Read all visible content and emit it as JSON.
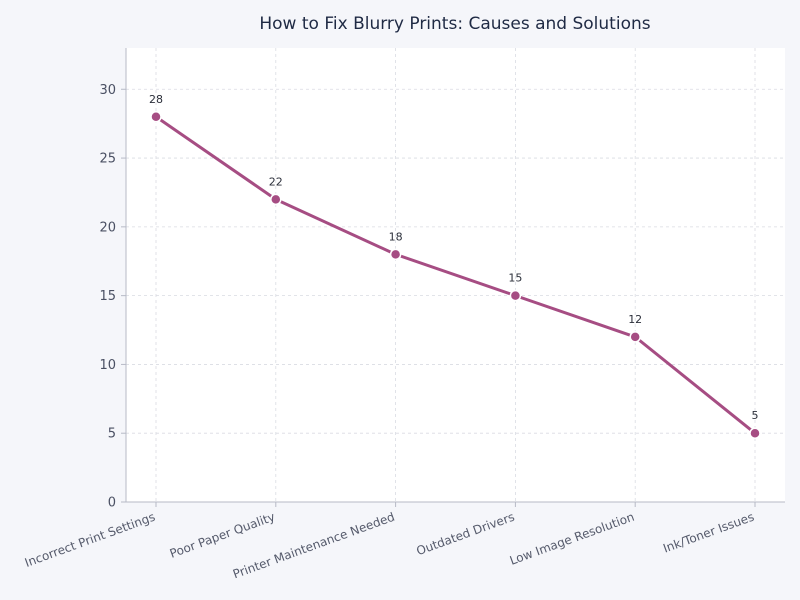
{
  "chart_data": {
    "type": "line",
    "title": "How to Fix Blurry Prints: Causes and Solutions",
    "xlabel": "",
    "ylabel": "",
    "categories": [
      "Incorrect Print Settings",
      "Poor Paper Quality",
      "Printer Maintenance Needed",
      "Outdated Drivers",
      "Low Image Resolution",
      "Ink/Toner Issues"
    ],
    "series": [
      {
        "values": [
          28,
          22,
          18,
          15,
          12,
          5
        ]
      }
    ],
    "ylim": [
      0,
      33
    ],
    "yticks": [
      0,
      5,
      10,
      15,
      20,
      25,
      30
    ],
    "grid": true,
    "legend": "none",
    "colors": {
      "line": "#a64d83",
      "background": "#f5f6fa",
      "plot_background": "#ffffff"
    }
  }
}
